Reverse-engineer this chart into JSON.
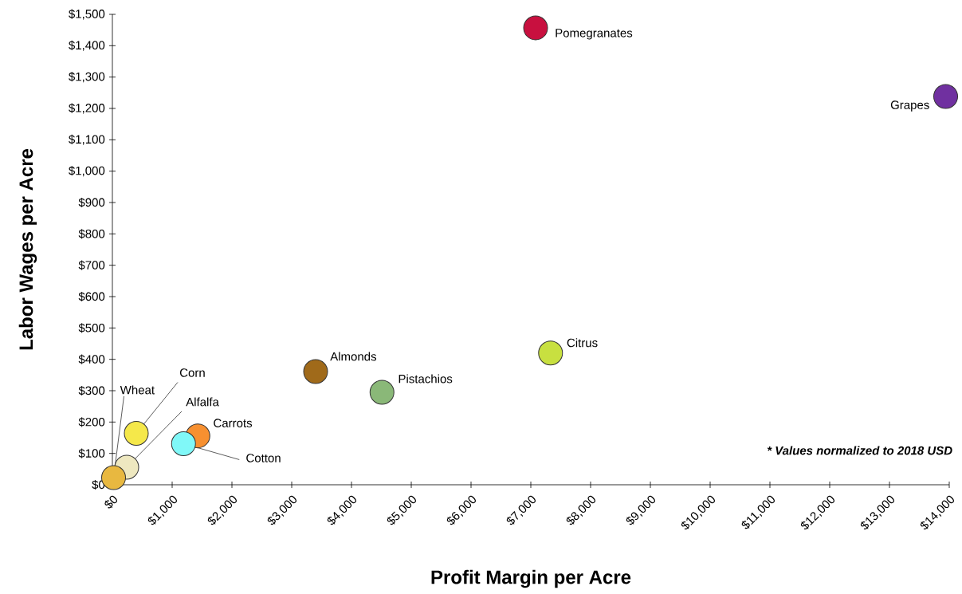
{
  "chart_data": {
    "type": "scatter",
    "xlabel": "Profit Margin per Acre",
    "ylabel": "Labor Wages per Acre",
    "grid": false,
    "x": [
      7080,
      13940,
      7330,
      3400,
      4510,
      400,
      1430,
      1190,
      240,
      20
    ],
    "values": [
      1457,
      1238,
      420,
      361,
      295,
      164,
      156,
      131,
      56,
      23
    ],
    "colors": [
      "#c8103f",
      "#7030a0",
      "#c8e040",
      "#a06a1a",
      "#8ab878",
      "#f5e84a",
      "#f79030",
      "#80f8f8",
      "#eee8c0",
      "#e8b840"
    ],
    "xlim": [
      0,
      14000
    ],
    "ylim": [
      0,
      1500
    ],
    "xticks": [
      {
        "value": 0,
        "label": "$0"
      },
      {
        "value": 1000,
        "label": "$1,000"
      },
      {
        "value": 2000,
        "label": "$2,000"
      },
      {
        "value": 3000,
        "label": "$3,000"
      },
      {
        "value": 4000,
        "label": "$4,000"
      },
      {
        "value": 5000,
        "label": "$5,000"
      },
      {
        "value": 6000,
        "label": "$6,000"
      },
      {
        "value": 7000,
        "label": "$7,000"
      },
      {
        "value": 8000,
        "label": "$8,000"
      },
      {
        "value": 9000,
        "label": "$9,000"
      },
      {
        "value": 10000,
        "label": "$10,000"
      },
      {
        "value": 11000,
        "label": "$11,000"
      },
      {
        "value": 12000,
        "label": "$12,000"
      },
      {
        "value": 13000,
        "label": "$13,000"
      },
      {
        "value": 14000,
        "label": "$14,000"
      }
    ],
    "yticks": [
      {
        "value": 0,
        "label": "$0"
      },
      {
        "value": 100,
        "label": "$100"
      },
      {
        "value": 200,
        "label": "$200"
      },
      {
        "value": 300,
        "label": "$300"
      },
      {
        "value": 400,
        "label": "$400"
      },
      {
        "value": 500,
        "label": "$500"
      },
      {
        "value": 600,
        "label": "$600"
      },
      {
        "value": 700,
        "label": "$700"
      },
      {
        "value": 800,
        "label": "$800"
      },
      {
        "value": 900,
        "label": "$900"
      },
      {
        "value": 1000,
        "label": "$1,000"
      },
      {
        "value": 1100,
        "label": "$1,100"
      },
      {
        "value": 1200,
        "label": "$1,200"
      },
      {
        "value": 1300,
        "label": "$1,300"
      },
      {
        "value": 1400,
        "label": "$1,400"
      },
      {
        "value": 1500,
        "label": "$1,500"
      }
    ],
    "annotations": [
      {
        "text": "Pomegranates",
        "x": 7080,
        "y": 1457
      },
      {
        "text": "Grapes",
        "x": 13940,
        "y": 1238
      },
      {
        "text": "Citrus",
        "x": 7330,
        "y": 420
      },
      {
        "text": "Almonds",
        "x": 3400,
        "y": 361
      },
      {
        "text": "Pistachios",
        "x": 4510,
        "y": 295
      },
      {
        "text": "Corn",
        "x": 400,
        "y": 164
      },
      {
        "text": "Carrots",
        "x": 1430,
        "y": 156
      },
      {
        "text": "Cotton",
        "x": 1190,
        "y": 131
      },
      {
        "text": "Alfalfa",
        "x": 240,
        "y": 56
      },
      {
        "text": "Wheat",
        "x": 20,
        "y": 23
      },
      "* Values normalized to 2018 USD"
    ]
  }
}
